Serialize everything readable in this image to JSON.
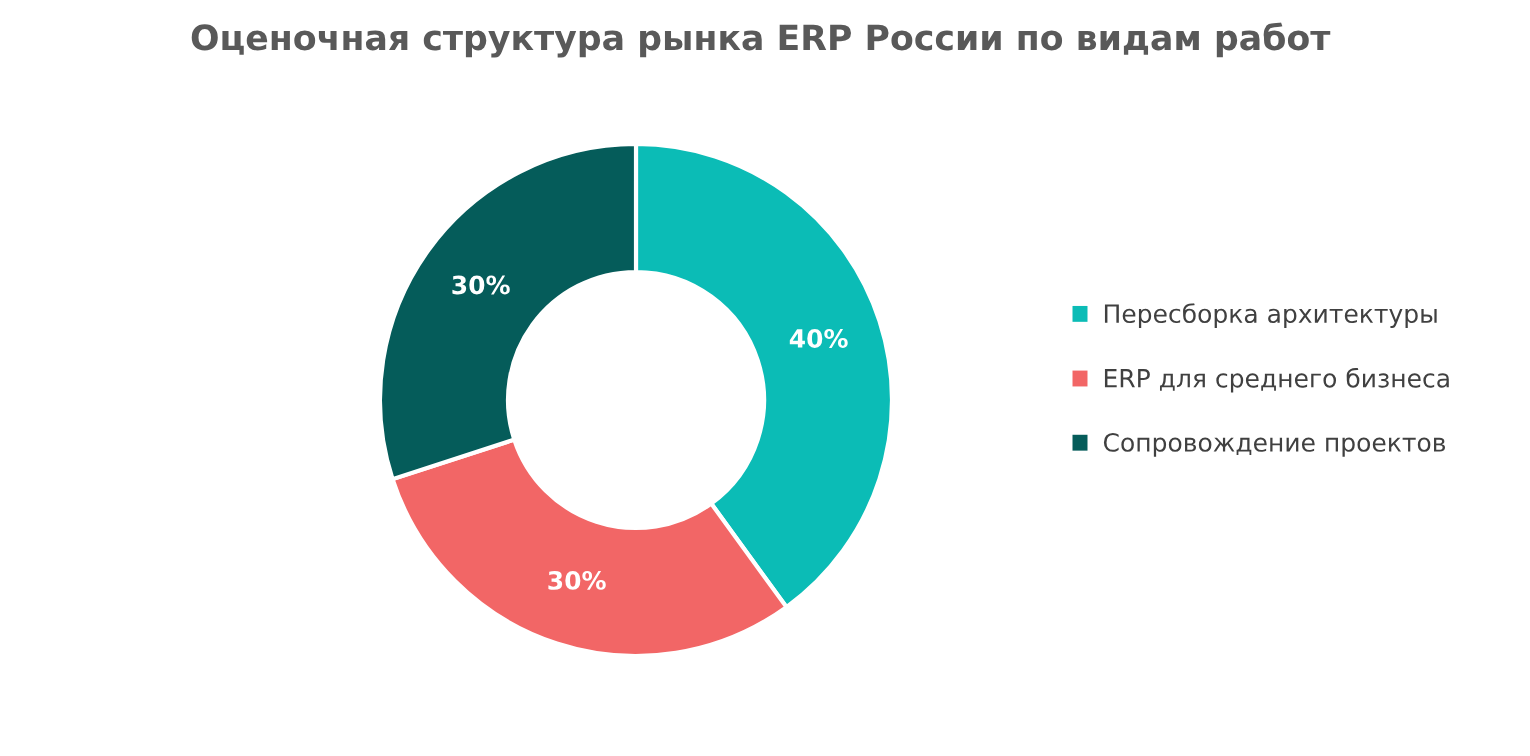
{
  "chart_data": {
    "type": "donut",
    "title": "Оценочная структура рынка ERP России по видам работ",
    "categories": [
      "Пересборка архитектуры",
      "ERP для среднего бизнеса",
      "Сопровождение проектов"
    ],
    "values": [
      40,
      30,
      30
    ],
    "colors": [
      "#0bbcb6",
      "#f26666",
      "#055c5a"
    ],
    "value_labels": [
      "40%",
      "30%",
      "30%"
    ],
    "legend": "right"
  }
}
